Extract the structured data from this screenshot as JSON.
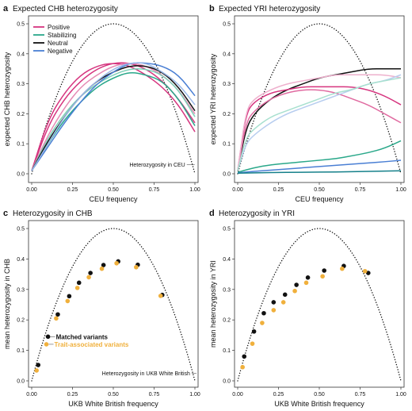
{
  "panels": [
    {
      "id": "a",
      "letter": "a",
      "title": "Expected CHB heterozygosity",
      "xlabel": "CEU frequency",
      "ylabel": "expected CHB heterozygosity",
      "xticks": [
        "0.00",
        "0.25",
        "0.50",
        "0.75",
        "1.00"
      ],
      "yticks": [
        "0.0",
        "0.1",
        "0.2",
        "0.3",
        "0.4",
        "0.5"
      ],
      "annotation": "Heterozygosity in CEU",
      "legend": [
        {
          "label": "Positive",
          "color": "#d6357f"
        },
        {
          "label": "Stabilizing",
          "color": "#2aa88a"
        },
        {
          "label": "Neutral",
          "color": "#111111"
        },
        {
          "label": "Negative",
          "color": "#4a7fd4"
        }
      ]
    },
    {
      "id": "b",
      "letter": "b",
      "title": "Expected YRI heterozygosity",
      "xlabel": "CEU frequency",
      "ylabel": "expected YRI heterozygosity",
      "xticks": [
        "0.00",
        "0.25",
        "0.50",
        "0.75",
        "1.00"
      ],
      "yticks": [
        "0.0",
        "0.1",
        "0.2",
        "0.3",
        "0.4",
        "0.5"
      ]
    },
    {
      "id": "c",
      "letter": "c",
      "title": "Heterozygosity in CHB",
      "xlabel": "UKB White British frequency",
      "ylabel": "mean heterozygosity in CHB",
      "xticks": [
        "0.00",
        "0.25",
        "0.50",
        "0.75",
        "1.00"
      ],
      "yticks": [
        "0.0",
        "0.1",
        "0.2",
        "0.3",
        "0.4",
        "0.5"
      ],
      "annotation": "Heterozygosity in UKB White British",
      "labels": {
        "matched": "Matched variants",
        "trait": "Trait-associated variants"
      }
    },
    {
      "id": "d",
      "letter": "d",
      "title": "Heterozygosity in YRI",
      "xlabel": "UKB White British frequency",
      "ylabel": "mean heterozygosity in YRI",
      "xticks": [
        "0.00",
        "0.25",
        "0.50",
        "0.75",
        "1.00"
      ],
      "yticks": [
        "0.0",
        "0.1",
        "0.2",
        "0.3",
        "0.4",
        "0.5"
      ]
    }
  ],
  "chart_data": [
    {
      "panel": "a",
      "type": "line",
      "xlim": [
        0,
        1
      ],
      "ylim": [
        0,
        0.5
      ],
      "reference_curve": "2p(1-p)",
      "series": [
        {
          "group": "Positive",
          "color": "#d6357f",
          "x": [
            0,
            0.1,
            0.2,
            0.3,
            0.4,
            0.5,
            0.6,
            0.7,
            0.8,
            0.9,
            1
          ],
          "y": [
            0.01,
            0.18,
            0.27,
            0.33,
            0.36,
            0.37,
            0.36,
            0.33,
            0.29,
            0.23,
            0.14
          ]
        },
        {
          "group": "Positive",
          "color": "#d6357f",
          "x": [
            0,
            0.1,
            0.2,
            0.3,
            0.4,
            0.5,
            0.6,
            0.7,
            0.8,
            0.9,
            1
          ],
          "y": [
            0.01,
            0.16,
            0.25,
            0.31,
            0.35,
            0.37,
            0.37,
            0.35,
            0.31,
            0.25,
            0.17
          ]
        },
        {
          "group": "Positive",
          "color": "#e58ab4",
          "x": [
            0,
            0.1,
            0.2,
            0.3,
            0.4,
            0.5,
            0.6,
            0.7,
            0.8,
            0.9,
            1
          ],
          "y": [
            0.01,
            0.13,
            0.22,
            0.29,
            0.33,
            0.36,
            0.37,
            0.36,
            0.33,
            0.28,
            0.2
          ]
        },
        {
          "group": "Stabilizing",
          "color": "#2aa88a",
          "x": [
            0,
            0.1,
            0.2,
            0.3,
            0.4,
            0.5,
            0.6,
            0.7,
            0.8,
            0.9,
            1
          ],
          "y": [
            0.01,
            0.1,
            0.18,
            0.24,
            0.29,
            0.32,
            0.34,
            0.33,
            0.31,
            0.25,
            0.16
          ]
        },
        {
          "group": "Stabilizing",
          "color": "#7fd0b8",
          "x": [
            0,
            0.1,
            0.2,
            0.3,
            0.4,
            0.5,
            0.6,
            0.7,
            0.8,
            0.9,
            1
          ],
          "y": [
            0.01,
            0.12,
            0.2,
            0.26,
            0.3,
            0.33,
            0.35,
            0.35,
            0.33,
            0.28,
            0.19
          ]
        },
        {
          "group": "Neutral",
          "color": "#111111",
          "x": [
            0,
            0.1,
            0.2,
            0.3,
            0.4,
            0.5,
            0.6,
            0.7,
            0.8,
            0.9,
            1
          ],
          "y": [
            0.01,
            0.11,
            0.19,
            0.26,
            0.31,
            0.34,
            0.36,
            0.36,
            0.34,
            0.29,
            0.21
          ]
        },
        {
          "group": "Negative",
          "color": "#4a7fd4",
          "x": [
            0,
            0.1,
            0.2,
            0.3,
            0.4,
            0.5,
            0.6,
            0.7,
            0.8,
            0.9,
            1
          ],
          "y": [
            0.01,
            0.09,
            0.17,
            0.24,
            0.3,
            0.34,
            0.37,
            0.37,
            0.36,
            0.33,
            0.26
          ]
        },
        {
          "group": "Negative",
          "color": "#9bb8e8",
          "x": [
            0,
            0.1,
            0.2,
            0.3,
            0.4,
            0.5,
            0.6,
            0.7,
            0.8,
            0.9,
            1
          ],
          "y": [
            0.01,
            0.1,
            0.19,
            0.26,
            0.31,
            0.35,
            0.37,
            0.37,
            0.34,
            0.3,
            0.23
          ]
        }
      ]
    },
    {
      "panel": "b",
      "type": "line",
      "xlim": [
        0,
        1
      ],
      "ylim": [
        0,
        0.5
      ],
      "reference_curve": "2p(1-p)",
      "series": [
        {
          "group": "Neutral",
          "color": "#111111",
          "x": [
            0,
            0.05,
            0.1,
            0.2,
            0.3,
            0.4,
            0.5,
            0.6,
            0.7,
            0.8,
            0.9,
            1
          ],
          "y": [
            0.01,
            0.15,
            0.2,
            0.25,
            0.28,
            0.3,
            0.32,
            0.33,
            0.34,
            0.35,
            0.35,
            0.35
          ]
        },
        {
          "group": "Positive",
          "color": "#d6357f",
          "x": [
            0,
            0.05,
            0.1,
            0.2,
            0.3,
            0.4,
            0.5,
            0.6,
            0.7,
            0.8,
            0.9,
            1
          ],
          "y": [
            0.01,
            0.2,
            0.24,
            0.27,
            0.28,
            0.29,
            0.29,
            0.29,
            0.29,
            0.28,
            0.26,
            0.23
          ]
        },
        {
          "group": "Positive",
          "color": "#e06aa0",
          "x": [
            0,
            0.05,
            0.1,
            0.2,
            0.3,
            0.4,
            0.5,
            0.6,
            0.7,
            0.8,
            0.9,
            1
          ],
          "y": [
            0.01,
            0.17,
            0.21,
            0.25,
            0.27,
            0.28,
            0.28,
            0.27,
            0.25,
            0.23,
            0.2,
            0.17
          ]
        },
        {
          "group": "Positive",
          "color": "#eeb0cd",
          "x": [
            0,
            0.05,
            0.1,
            0.2,
            0.3,
            0.4,
            0.5,
            0.6,
            0.7,
            0.8,
            0.9,
            1
          ],
          "y": [
            0.01,
            0.21,
            0.25,
            0.28,
            0.3,
            0.31,
            0.32,
            0.33,
            0.33,
            0.33,
            0.33,
            0.32
          ]
        },
        {
          "group": "Negative",
          "color": "#b7cdef",
          "x": [
            0,
            0.05,
            0.1,
            0.2,
            0.3,
            0.4,
            0.5,
            0.6,
            0.7,
            0.8,
            0.9,
            1
          ],
          "y": [
            0.01,
            0.1,
            0.13,
            0.17,
            0.2,
            0.22,
            0.24,
            0.26,
            0.28,
            0.3,
            0.31,
            0.33
          ]
        },
        {
          "group": "Stabilizing",
          "color": "#a8e0cf",
          "x": [
            0,
            0.05,
            0.1,
            0.2,
            0.3,
            0.4,
            0.5,
            0.6,
            0.7,
            0.8,
            0.9,
            1
          ],
          "y": [
            0.01,
            0.12,
            0.15,
            0.19,
            0.21,
            0.23,
            0.25,
            0.27,
            0.28,
            0.3,
            0.31,
            0.32
          ]
        },
        {
          "group": "Stabilizing",
          "color": "#2aa88a",
          "x": [
            0,
            0.1,
            0.2,
            0.3,
            0.4,
            0.5,
            0.6,
            0.7,
            0.8,
            0.9,
            1
          ],
          "y": [
            0.005,
            0.02,
            0.03,
            0.035,
            0.04,
            0.045,
            0.05,
            0.06,
            0.07,
            0.085,
            0.11
          ]
        },
        {
          "group": "Negative",
          "color": "#4a7fd4",
          "x": [
            0,
            0.1,
            0.2,
            0.3,
            0.4,
            0.5,
            0.6,
            0.7,
            0.8,
            0.9,
            1
          ],
          "y": [
            0.003,
            0.008,
            0.012,
            0.016,
            0.02,
            0.024,
            0.028,
            0.032,
            0.036,
            0.04,
            0.045
          ]
        },
        {
          "group": "Stabilizing",
          "color": "#15808a",
          "x": [
            0,
            0.2,
            0.4,
            0.6,
            0.8,
            1
          ],
          "y": [
            0.002,
            0.004,
            0.005,
            0.006,
            0.008,
            0.01
          ]
        }
      ]
    },
    {
      "panel": "c",
      "type": "scatter",
      "xlim": [
        0,
        1
      ],
      "ylim": [
        0,
        0.5
      ],
      "reference_curve": "2p(1-p)",
      "series": [
        {
          "name": "Matched variants",
          "color": "#111111",
          "points": [
            [
              0.04,
              0.052
            ],
            [
              0.1,
              0.145
            ],
            [
              0.16,
              0.218
            ],
            [
              0.23,
              0.278
            ],
            [
              0.29,
              0.322
            ],
            [
              0.36,
              0.354
            ],
            [
              0.44,
              0.38
            ],
            [
              0.53,
              0.392
            ],
            [
              0.65,
              0.381
            ],
            [
              0.8,
              0.282
            ]
          ]
        },
        {
          "name": "Trait-associated variants",
          "color": "#f0b03c",
          "points": [
            [
              0.03,
              0.034
            ],
            [
              0.09,
              0.12
            ],
            [
              0.15,
              0.205
            ],
            [
              0.22,
              0.262
            ],
            [
              0.28,
              0.305
            ],
            [
              0.35,
              0.34
            ],
            [
              0.43,
              0.368
            ],
            [
              0.52,
              0.386
            ],
            [
              0.64,
              0.373
            ],
            [
              0.79,
              0.279
            ]
          ]
        }
      ]
    },
    {
      "panel": "d",
      "type": "scatter",
      "xlim": [
        0,
        1
      ],
      "ylim": [
        0,
        0.5
      ],
      "reference_curve": "2p(1-p)",
      "series": [
        {
          "name": "Matched variants",
          "color": "#111111",
          "points": [
            [
              0.04,
              0.08
            ],
            [
              0.1,
              0.162
            ],
            [
              0.16,
              0.222
            ],
            [
              0.22,
              0.258
            ],
            [
              0.29,
              0.283
            ],
            [
              0.36,
              0.315
            ],
            [
              0.43,
              0.339
            ],
            [
              0.53,
              0.362
            ],
            [
              0.65,
              0.377
            ],
            [
              0.8,
              0.354
            ]
          ]
        },
        {
          "name": "Trait-associated variants",
          "color": "#f0b03c",
          "points": [
            [
              0.03,
              0.045
            ],
            [
              0.09,
              0.122
            ],
            [
              0.15,
              0.19
            ],
            [
              0.22,
              0.232
            ],
            [
              0.28,
              0.258
            ],
            [
              0.35,
              0.295
            ],
            [
              0.42,
              0.322
            ],
            [
              0.52,
              0.343
            ],
            [
              0.64,
              0.368
            ],
            [
              0.78,
              0.36
            ]
          ]
        }
      ]
    }
  ]
}
